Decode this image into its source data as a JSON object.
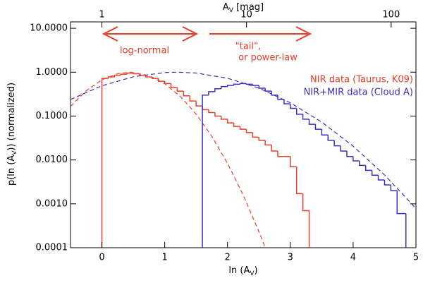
{
  "chart_data": {
    "type": "histogram",
    "xlabel": [
      "ln (A",
      "V",
      ")"
    ],
    "ylabel": [
      "p(ln (A",
      "V",
      ")) (normalized)"
    ],
    "x2label": [
      "A",
      "V",
      " [mag]"
    ],
    "xlim": [
      -0.5,
      5
    ],
    "xticks": [
      0,
      1,
      2,
      3,
      4,
      5
    ],
    "ylim": [
      0.0001,
      14
    ],
    "yscale": "log",
    "yticks": [
      {
        "value": 10,
        "label": "10.0000"
      },
      {
        "value": 1,
        "label": "1.0000"
      },
      {
        "value": 0.1,
        "label": "0.1000"
      },
      {
        "value": 0.01,
        "label": "0.0100"
      },
      {
        "value": 0.001,
        "label": "0.0010"
      },
      0.0001
    ],
    "x2scale": "ln",
    "x2ticks": [
      1,
      10,
      100
    ],
    "annotations": [
      "log-normal",
      "\"tail\",",
      "or power-law"
    ],
    "series": [
      {
        "name": "NIR data (Taurus, K09)",
        "color": "#e8402a",
        "bins": [
          0,
          0.1,
          0.2,
          0.3,
          0.4,
          0.5,
          0.6,
          0.7,
          0.8,
          0.9,
          1.0,
          1.1,
          1.2,
          1.3,
          1.4,
          1.5,
          1.6,
          1.7,
          1.8,
          1.9,
          2.0,
          2.1,
          2.2,
          2.3,
          2.4,
          2.5,
          2.6,
          2.7,
          2.8,
          2.9,
          3.0,
          3.1,
          3.2,
          3.3
        ],
        "values": [
          0.72,
          0.78,
          0.85,
          0.9,
          0.95,
          0.92,
          0.85,
          0.78,
          0.72,
          0.62,
          0.55,
          0.45,
          0.37,
          0.29,
          0.22,
          0.17,
          0.14,
          0.12,
          0.1,
          0.085,
          0.07,
          0.058,
          0.05,
          0.042,
          0.033,
          0.028,
          0.022,
          0.016,
          0.012,
          0.012,
          0.007,
          0.0017,
          0.0007
        ]
      },
      {
        "name": "NIR+MIR data (Cloud A)",
        "color": "#3b2fbf",
        "bins": [
          1.6,
          1.7,
          1.8,
          1.9,
          2.0,
          2.1,
          2.2,
          2.3,
          2.4,
          2.5,
          2.6,
          2.7,
          2.8,
          2.9,
          3.0,
          3.1,
          3.2,
          3.3,
          3.4,
          3.5,
          3.6,
          3.7,
          3.8,
          3.9,
          4.0,
          4.1,
          4.2,
          4.3,
          4.4,
          4.5,
          4.6,
          4.7,
          4.84
        ],
        "values": [
          0.3,
          0.36,
          0.42,
          0.47,
          0.5,
          0.53,
          0.55,
          0.53,
          0.5,
          0.43,
          0.37,
          0.3,
          0.24,
          0.19,
          0.15,
          0.11,
          0.085,
          0.065,
          0.05,
          0.037,
          0.028,
          0.021,
          0.016,
          0.012,
          0.0095,
          0.0075,
          0.0058,
          0.0045,
          0.0035,
          0.0027,
          0.002,
          0.0006
        ]
      }
    ],
    "curves": [
      {
        "color": "#e8402a",
        "x": [
          -0.5,
          -0.25,
          0,
          0.25,
          0.45,
          0.75,
          1.0,
          1.25,
          1.5,
          1.75,
          2.0,
          2.25,
          2.5,
          2.6
        ],
        "values": [
          0.166,
          0.377,
          0.668,
          0.923,
          1,
          0.836,
          0.547,
          0.279,
          0.111,
          0.0345,
          0.00835,
          0.00158,
          0.000232,
          0.0001
        ]
      },
      {
        "color": "#3b2fbf",
        "x": [
          -0.5,
          0,
          0.5,
          1.0,
          1.2,
          1.5,
          2.0,
          2.5,
          3.0,
          3.5,
          4.0,
          4.5,
          5.0
        ],
        "values": [
          0.239,
          0.49,
          0.785,
          0.98,
          1,
          0.956,
          0.728,
          0.433,
          0.201,
          0.0729,
          0.0206,
          0.00456,
          0.000786
        ]
      }
    ]
  }
}
